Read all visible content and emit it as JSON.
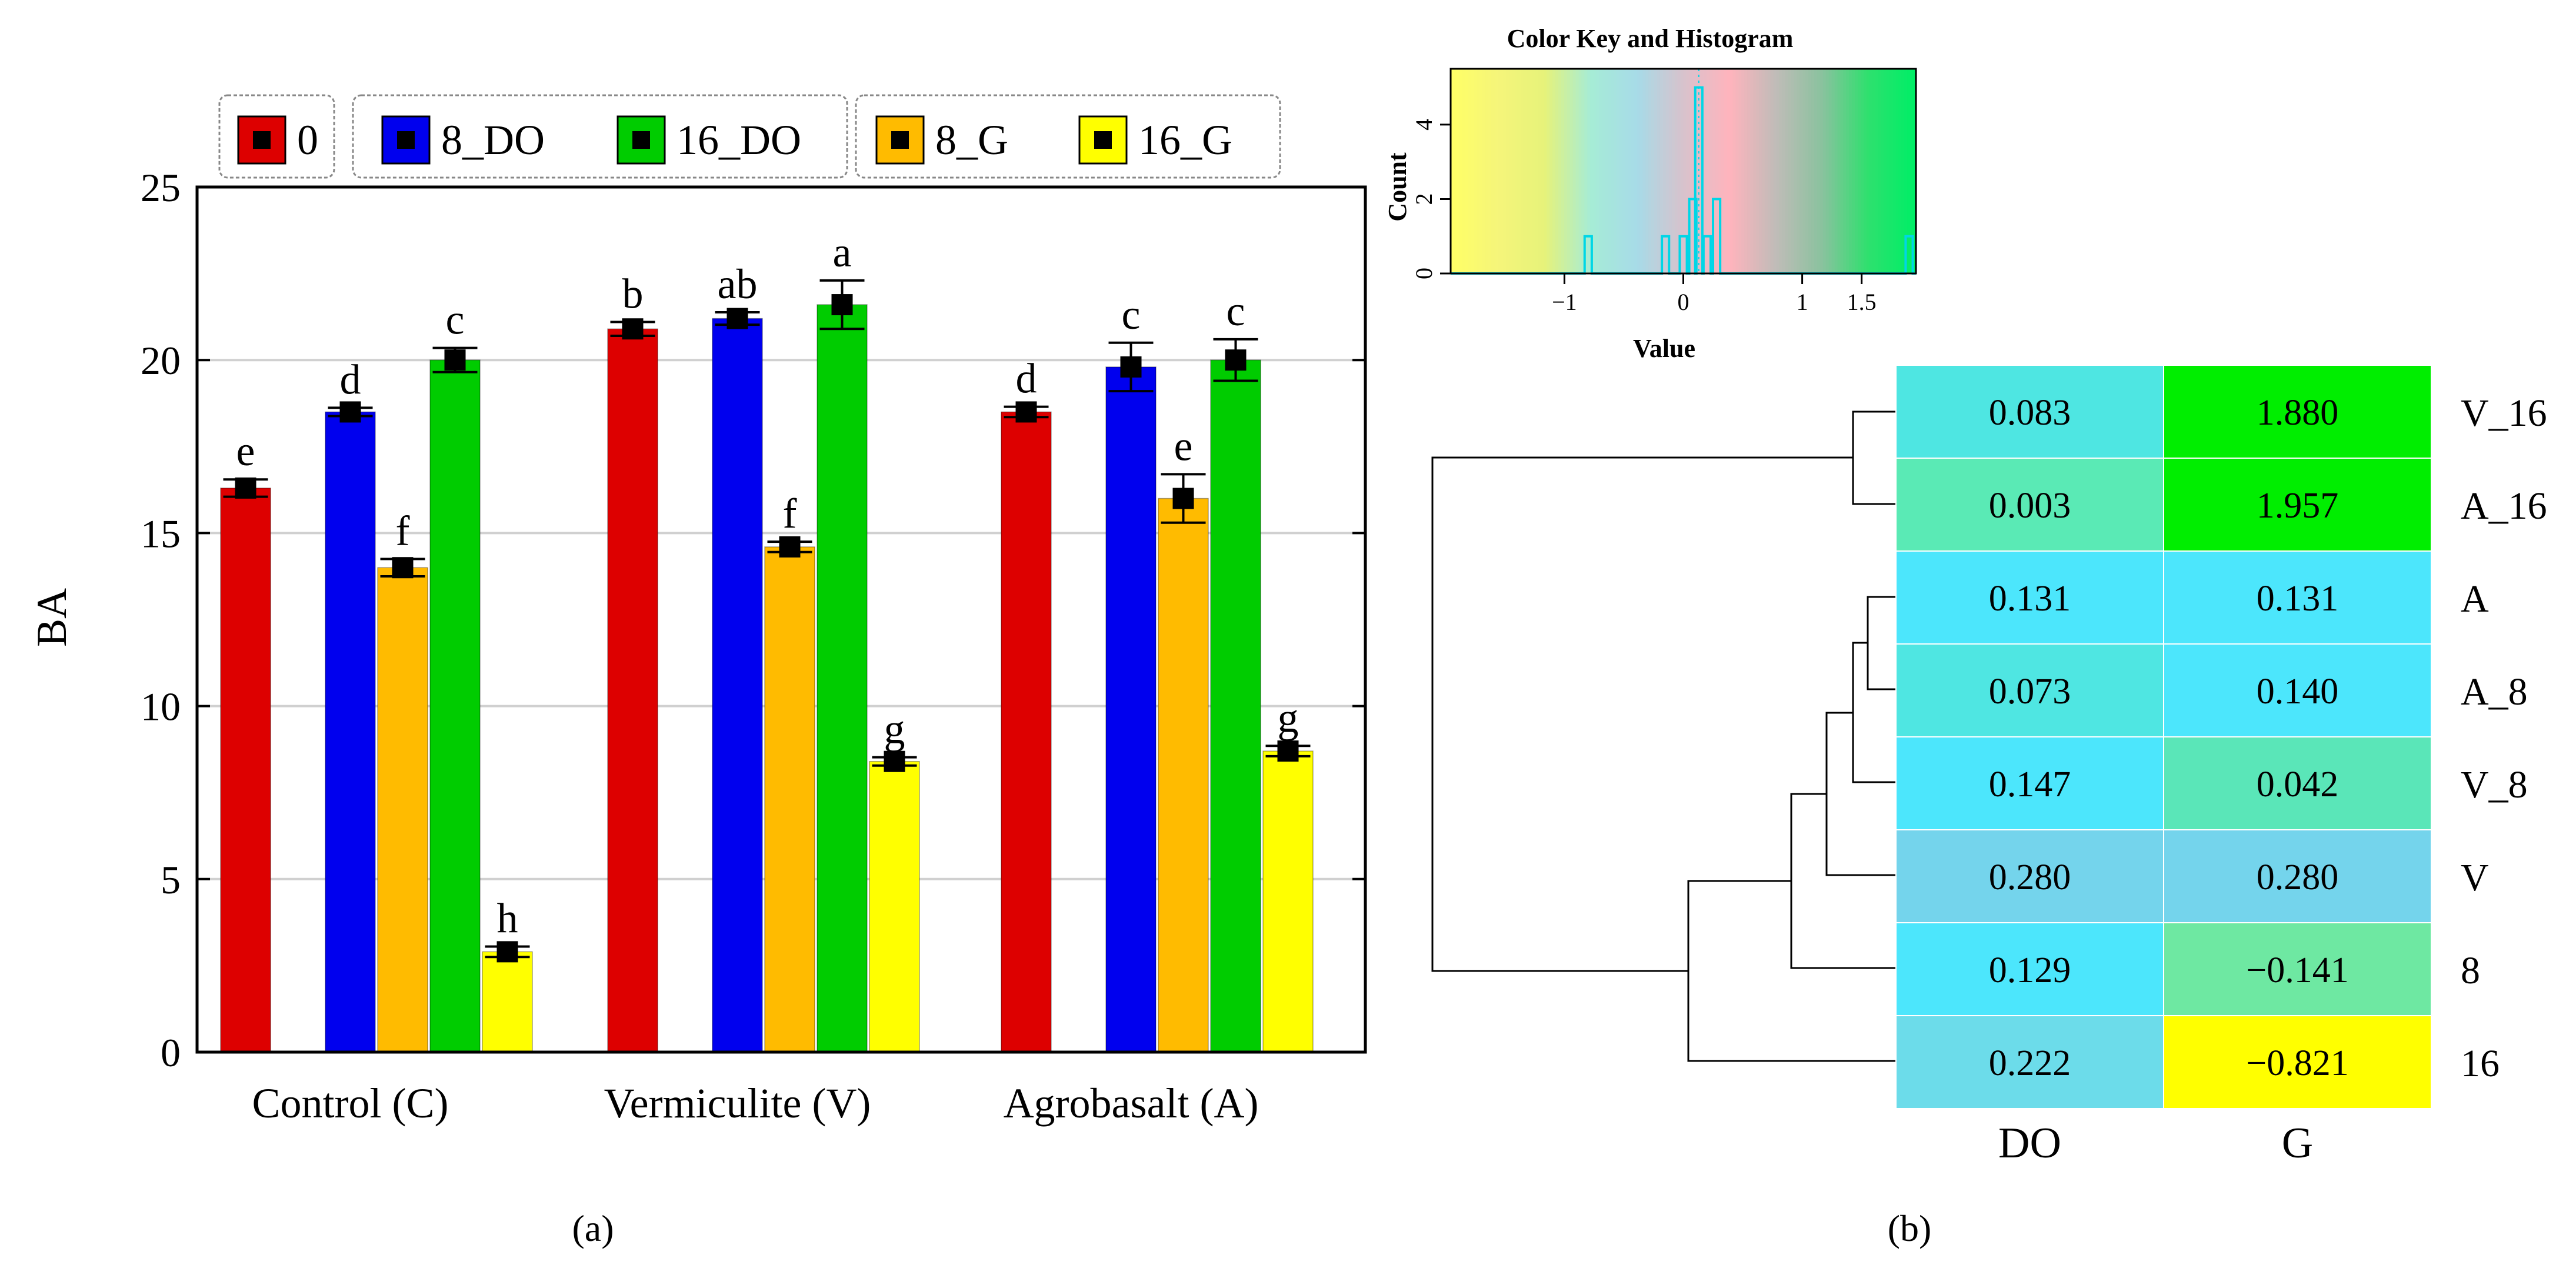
{
  "chart_data": [
    {
      "type": "bar",
      "panel_label": "(a)",
      "ylabel": "BA",
      "xlabel": "",
      "ylim": [
        0,
        25
      ],
      "yticks": [
        0,
        5,
        10,
        15,
        20,
        25
      ],
      "grid": true,
      "categories": [
        "Control (C)",
        "Vermiculite (V)",
        "Agrobasalt (A)"
      ],
      "legend_groups": [
        [
          "0"
        ],
        [
          "8_DO",
          "16_DO"
        ],
        [
          "8_G",
          "16_G"
        ]
      ],
      "series": [
        {
          "name": "0",
          "color": "#dd0000",
          "values": [
            16.3,
            20.9,
            18.5
          ],
          "errors": [
            0.25,
            0.2,
            0.15
          ],
          "letters": [
            "e",
            "b",
            "d"
          ]
        },
        {
          "name": "8_DO",
          "color": "#0000ee",
          "values": [
            18.5,
            21.2,
            19.8
          ],
          "errors": [
            0.12,
            0.18,
            0.7
          ],
          "letters": [
            "d",
            "ab",
            "c"
          ]
        },
        {
          "name": "8_G",
          "color": "#ffbb00",
          "values": [
            14.0,
            14.6,
            16.0
          ],
          "errors": [
            0.25,
            0.15,
            0.7
          ],
          "letters": [
            "f",
            "f",
            "e"
          ]
        },
        {
          "name": "16_DO",
          "color": "#00cc00",
          "values": [
            20.0,
            21.6,
            20.0
          ],
          "errors": [
            0.35,
            0.7,
            0.6
          ],
          "letters": [
            "c",
            "a",
            "c"
          ]
        },
        {
          "name": "16_G",
          "color": "#ffff00",
          "values": [
            2.9,
            8.4,
            8.7
          ],
          "errors": [
            0.15,
            0.12,
            0.15
          ],
          "letters": [
            "h",
            "g",
            "g"
          ]
        }
      ]
    },
    {
      "type": "heatmap",
      "panel_label": "(b)",
      "columns": [
        "DO",
        "G"
      ],
      "rows": [
        "V_16",
        "A_16",
        "A",
        "A_8",
        "V_8",
        "V",
        "8",
        "16"
      ],
      "values": [
        [
          0.083,
          1.88
        ],
        [
          0.003,
          1.957
        ],
        [
          0.131,
          0.131
        ],
        [
          0.073,
          0.14
        ],
        [
          0.147,
          0.042
        ],
        [
          0.28,
          0.28
        ],
        [
          0.129,
          -0.141
        ],
        [
          0.222,
          -0.821
        ]
      ],
      "labels": [
        [
          "0.083",
          "1.880"
        ],
        [
          "0.003",
          "1.957"
        ],
        [
          "0.131",
          "0.131"
        ],
        [
          "0.073",
          "0.140"
        ],
        [
          "0.147",
          "0.042"
        ],
        [
          "0.280",
          "0.280"
        ],
        [
          "0.129",
          "−0.141"
        ],
        [
          "0.222",
          "−0.821"
        ]
      ],
      "cell_colors": [
        [
          "#4ee6e2",
          "#00ee00"
        ],
        [
          "#5aeab5",
          "#00ee00"
        ],
        [
          "#4ce6fc",
          "#4ce6fc"
        ],
        [
          "#4fe6e2",
          "#4ce6fc"
        ],
        [
          "#4ce6fc",
          "#5ae6b8"
        ],
        [
          "#74d4ec",
          "#74d4ec"
        ],
        [
          "#4ce6fc",
          "#6ee8a2"
        ],
        [
          "#6cdcea",
          "#ffff00"
        ]
      ],
      "color_key": {
        "title": "Color Key and Histogram",
        "xlabel": "Value",
        "ylabel": "Count",
        "xticks": [
          -1,
          0,
          1,
          1.5
        ],
        "xtick_labels": [
          "−1",
          "0",
          "1",
          "1.5"
        ],
        "xrange": [
          -1.957,
          1.957
        ],
        "yticks": [
          0,
          2,
          4
        ],
        "yrange": [
          0,
          5.5
        ],
        "gradient_colors": [
          "#ffff66",
          "#f5f57a",
          "#e6f27a",
          "#a6ecd6",
          "#a7dbe8",
          "#d8c2cc",
          "#ffb4bd",
          "#c0bcb8",
          "#8ac29e",
          "#2ee06e",
          "#00ee66"
        ],
        "histogram_bins": [
          {
            "x": -0.8,
            "count": 1
          },
          {
            "x": -0.15,
            "count": 1
          },
          {
            "x": 0.0,
            "count": 1
          },
          {
            "x": 0.08,
            "count": 2
          },
          {
            "x": 0.13,
            "count": 5
          },
          {
            "x": 0.2,
            "count": 1
          },
          {
            "x": 0.28,
            "count": 2
          },
          {
            "x": 1.9,
            "count": 1
          }
        ]
      }
    }
  ]
}
